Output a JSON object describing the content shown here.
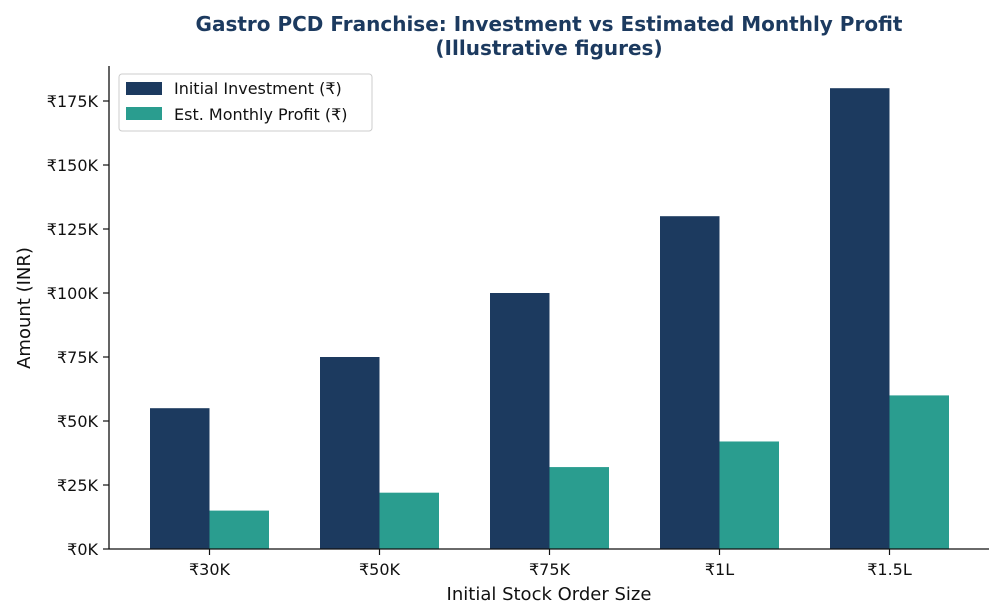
{
  "chart_data": {
    "type": "bar",
    "title_line1": "Gastro PCD Franchise: Investment vs Estimated Monthly Profit",
    "title_line2": "(Illustrative figures)",
    "xlabel": "Initial Stock Order Size",
    "ylabel": "Amount (INR)",
    "categories": [
      "₹30K",
      "₹50K",
      "₹75K",
      "₹1L",
      "₹1.5L"
    ],
    "series": [
      {
        "name": "Initial Investment (₹)",
        "color": "#1c3a5f",
        "values": [
          55000,
          75000,
          100000,
          130000,
          180000
        ]
      },
      {
        "name": "Est. Monthly Profit (₹)",
        "color": "#2a9d8f",
        "values": [
          15000,
          22000,
          32000,
          42000,
          60000
        ]
      }
    ],
    "yticks": [
      0,
      25000,
      50000,
      75000,
      100000,
      125000,
      150000,
      175000
    ],
    "ytick_labels": [
      "₹0K",
      "₹25K",
      "₹50K",
      "₹75K",
      "₹100K",
      "₹125K",
      "₹150K",
      "₹175K"
    ],
    "ylim": [
      0,
      189000
    ],
    "grid": false,
    "legend_position": "top-left"
  }
}
